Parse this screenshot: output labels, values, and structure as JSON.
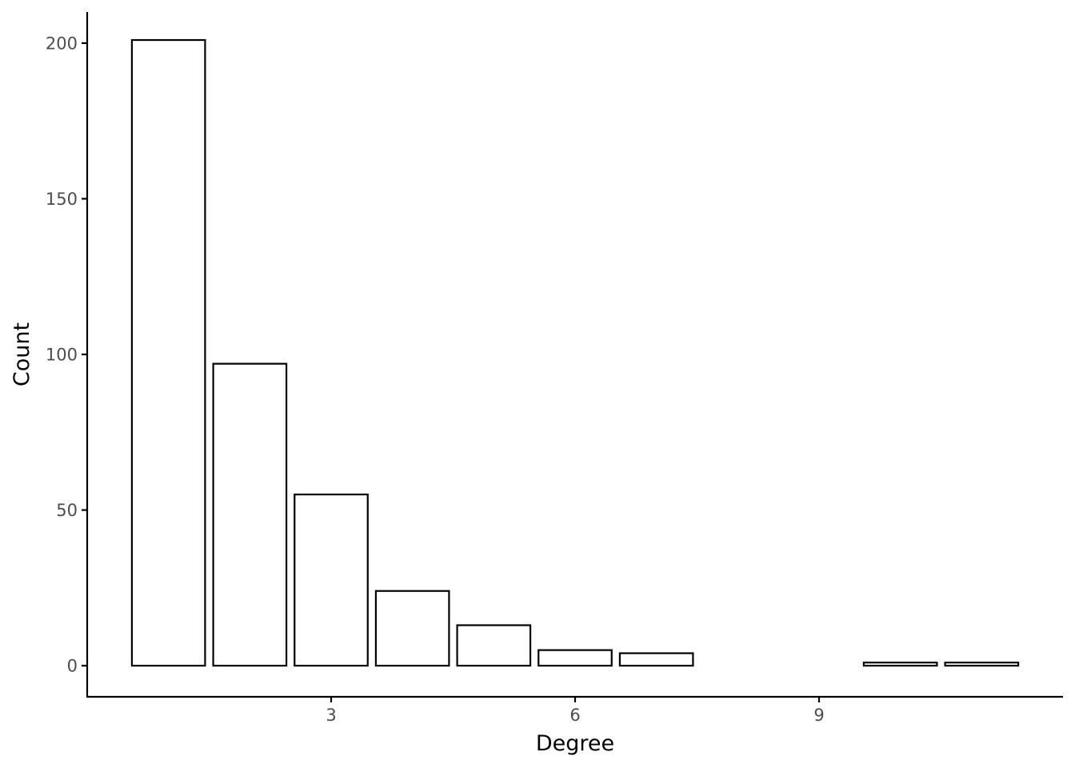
{
  "chart_data": {
    "type": "bar",
    "title": "",
    "xlabel": "Degree",
    "ylabel": "Count",
    "x": [
      1,
      2,
      3,
      4,
      5,
      6,
      7,
      10,
      11
    ],
    "values": [
      201,
      97,
      55,
      24,
      13,
      5,
      4,
      1,
      1
    ],
    "xlim": [
      0,
      12
    ],
    "ylim": [
      -10,
      210
    ],
    "x_ticks": [
      3,
      6,
      9
    ],
    "x_tick_labels": [
      "3",
      "6",
      "9"
    ],
    "y_ticks": [
      0,
      50,
      100,
      150,
      200
    ],
    "y_tick_labels": [
      "0",
      "50",
      "100",
      "150",
      "200"
    ],
    "bar_fill": "#ffffff",
    "bar_stroke": "#000000",
    "grid": false,
    "legend": "none"
  }
}
